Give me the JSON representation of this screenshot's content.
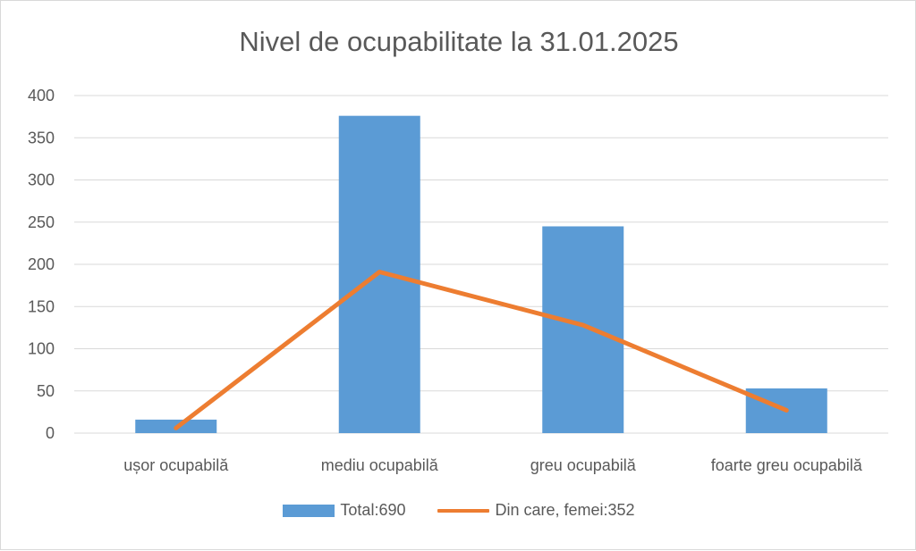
{
  "chart_data": {
    "type": "bar",
    "title": "Nivel de ocupabilitate la 31.01.2025",
    "categories": [
      "ușor ocupabilă",
      "mediu ocupabilă",
      "greu ocupabilă",
      "foarte greu ocupabilă"
    ],
    "series": [
      {
        "name": "Total:690",
        "type": "bar",
        "color": "#5b9bd5",
        "values": [
          16,
          376,
          245,
          53
        ]
      },
      {
        "name": "Din care, femei:352",
        "type": "line",
        "color": "#ed7d31",
        "values": [
          6,
          191,
          128,
          27
        ]
      }
    ],
    "ylim": [
      0,
      400
    ],
    "yticks": [
      0,
      50,
      100,
      150,
      200,
      250,
      300,
      350,
      400
    ],
    "grid": true,
    "legend_position": "bottom",
    "xlabel": "",
    "ylabel": ""
  }
}
